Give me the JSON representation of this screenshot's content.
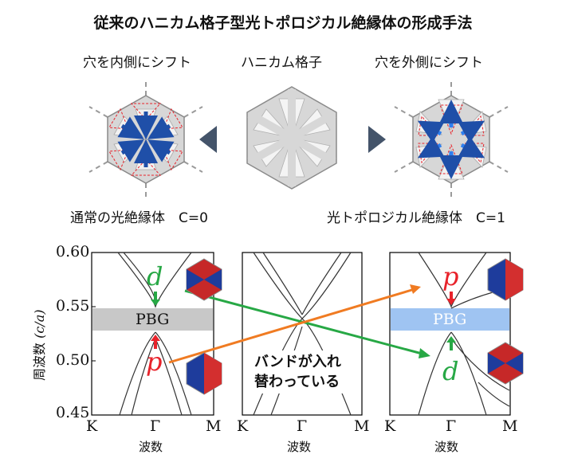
{
  "title": "従来のハニカム格子型光トポロジカル絶縁体の形成手法",
  "top": {
    "left_caption": "穴を内側にシフト",
    "center_caption": "ハニカム格子",
    "right_caption": "穴を外側にシフト",
    "left_bottom": "通常の光絶縁体　C=0",
    "right_bottom": "光トポロジカル絶縁体　C=1"
  },
  "chart": {
    "ylabel": "周波数",
    "yunit": "(c/a)",
    "yticks": [
      "0.60",
      "0.55",
      "0.50",
      "0.45"
    ],
    "panels": [
      {
        "xticks": [
          "K",
          "Γ",
          "M"
        ],
        "xlabel": "波数",
        "gap_label": "PBG",
        "upper_label": "d",
        "lower_label": "p"
      },
      {
        "xticks": [
          "K",
          "Γ",
          "M"
        ],
        "xlabel": "波数"
      },
      {
        "xticks": [
          "K",
          "Γ",
          "M"
        ],
        "xlabel": "波数",
        "gap_label": "PBG",
        "upper_label": "p",
        "lower_label": "d"
      }
    ],
    "annotation_line1": "バンドが入れ",
    "annotation_line2": "替わっている",
    "colors": {
      "gap_left": "#c8c8c8",
      "gap_right": "#9fc4f2",
      "green": "#27a845",
      "orange": "#f07b22",
      "red": "#e8222a"
    }
  },
  "chart_data": {
    "type": "line",
    "ylabel": "周波数 (c/a)",
    "ylim": [
      0.45,
      0.6
    ],
    "panels": [
      {
        "gap": [
          0.523,
          0.538
        ],
        "gap_label": "PBG",
        "upper_band_at_gamma": "d",
        "lower_band_at_gamma": "p"
      },
      {
        "dirac_point": 0.535
      },
      {
        "gap": [
          0.523,
          0.538
        ],
        "gap_label": "PBG",
        "upper_band_at_gamma": "p",
        "lower_band_at_gamma": "d"
      }
    ]
  }
}
